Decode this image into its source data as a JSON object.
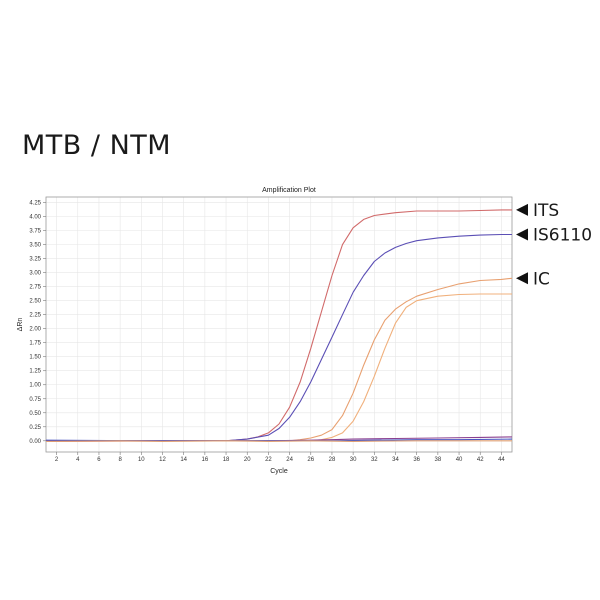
{
  "heading": "MTB / NTM",
  "chart_data": {
    "type": "line",
    "title": "Amplification Plot",
    "xlabel": "Cycle",
    "ylabel": "ΔRn",
    "xlim": [
      1,
      45
    ],
    "ylim": [
      -0.2,
      4.35
    ],
    "x_ticks": [
      2,
      4,
      6,
      8,
      10,
      12,
      14,
      16,
      18,
      20,
      22,
      24,
      26,
      28,
      30,
      32,
      34,
      36,
      38,
      40,
      42,
      44
    ],
    "y_ticks": [
      "0.00",
      "0.25",
      "0.50",
      "0.75",
      "1.00",
      "1.25",
      "1.50",
      "1.75",
      "2.00",
      "2.25",
      "2.50",
      "2.75",
      "3.00",
      "3.25",
      "3.50",
      "3.75",
      "4.00",
      "4.25"
    ],
    "grid": true,
    "series": [
      {
        "name": "ITS",
        "color": "#d16a6a",
        "points": [
          [
            1,
            -0.01
          ],
          [
            18,
            0.0
          ],
          [
            20,
            0.03
          ],
          [
            21,
            0.07
          ],
          [
            22,
            0.14
          ],
          [
            23,
            0.3
          ],
          [
            24,
            0.6
          ],
          [
            25,
            1.05
          ],
          [
            26,
            1.65
          ],
          [
            27,
            2.3
          ],
          [
            28,
            2.95
          ],
          [
            29,
            3.5
          ],
          [
            30,
            3.8
          ],
          [
            31,
            3.95
          ],
          [
            32,
            4.02
          ],
          [
            34,
            4.07
          ],
          [
            36,
            4.1
          ],
          [
            38,
            4.1
          ],
          [
            40,
            4.1
          ],
          [
            42,
            4.11
          ],
          [
            44,
            4.12
          ],
          [
            45,
            4.12
          ]
        ]
      },
      {
        "name": "IS6110",
        "color": "#5b4fb5",
        "points": [
          [
            1,
            0.0
          ],
          [
            18,
            0.0
          ],
          [
            20,
            0.03
          ],
          [
            22,
            0.1
          ],
          [
            23,
            0.22
          ],
          [
            24,
            0.42
          ],
          [
            25,
            0.7
          ],
          [
            26,
            1.05
          ],
          [
            27,
            1.45
          ],
          [
            28,
            1.85
          ],
          [
            29,
            2.25
          ],
          [
            30,
            2.65
          ],
          [
            31,
            2.95
          ],
          [
            32,
            3.2
          ],
          [
            33,
            3.35
          ],
          [
            34,
            3.45
          ],
          [
            35,
            3.52
          ],
          [
            36,
            3.57
          ],
          [
            38,
            3.62
          ],
          [
            40,
            3.65
          ],
          [
            42,
            3.67
          ],
          [
            44,
            3.68
          ],
          [
            45,
            3.68
          ]
        ]
      },
      {
        "name": "IC",
        "color": "#e8a070",
        "points": [
          [
            1,
            0.0
          ],
          [
            24,
            0.0
          ],
          [
            25,
            0.02
          ],
          [
            26,
            0.05
          ],
          [
            27,
            0.1
          ],
          [
            28,
            0.2
          ],
          [
            29,
            0.45
          ],
          [
            30,
            0.85
          ],
          [
            31,
            1.35
          ],
          [
            32,
            1.8
          ],
          [
            33,
            2.15
          ],
          [
            34,
            2.35
          ],
          [
            35,
            2.48
          ],
          [
            36,
            2.58
          ],
          [
            38,
            2.7
          ],
          [
            40,
            2.8
          ],
          [
            42,
            2.86
          ],
          [
            44,
            2.88
          ],
          [
            45,
            2.9
          ]
        ]
      },
      {
        "name": "",
        "color": "#f0b07c",
        "points": [
          [
            1,
            0.0
          ],
          [
            26,
            0.0
          ],
          [
            27,
            0.02
          ],
          [
            28,
            0.06
          ],
          [
            29,
            0.14
          ],
          [
            30,
            0.35
          ],
          [
            31,
            0.7
          ],
          [
            32,
            1.15
          ],
          [
            33,
            1.65
          ],
          [
            34,
            2.1
          ],
          [
            35,
            2.38
          ],
          [
            36,
            2.5
          ],
          [
            38,
            2.58
          ],
          [
            40,
            2.61
          ],
          [
            42,
            2.62
          ],
          [
            44,
            2.62
          ],
          [
            45,
            2.62
          ]
        ]
      },
      {
        "name": "",
        "color": "#8a3f8f",
        "points": [
          [
            1,
            0.0
          ],
          [
            22,
            0.0
          ],
          [
            26,
            0.01
          ],
          [
            28,
            0.02
          ],
          [
            30,
            0.03
          ],
          [
            34,
            0.04
          ],
          [
            38,
            0.05
          ],
          [
            42,
            0.06
          ],
          [
            45,
            0.07
          ]
        ]
      },
      {
        "name": "",
        "color": "#4a56c2",
        "points": [
          [
            1,
            0.01
          ],
          [
            10,
            0.0
          ],
          [
            20,
            0.0
          ],
          [
            28,
            0.0
          ],
          [
            32,
            0.01
          ],
          [
            36,
            0.02
          ],
          [
            40,
            0.02
          ],
          [
            45,
            0.03
          ]
        ]
      },
      {
        "name": "",
        "color": "#e0a074",
        "points": [
          [
            1,
            -0.01
          ],
          [
            8,
            0.0
          ],
          [
            12,
            -0.01
          ],
          [
            18,
            0.0
          ],
          [
            22,
            -0.01
          ],
          [
            26,
            0.0
          ],
          [
            30,
            -0.01
          ],
          [
            36,
            0.0
          ],
          [
            45,
            0.0
          ]
        ]
      }
    ],
    "annotations": [
      "ITS",
      "IS6110",
      "IC"
    ]
  }
}
